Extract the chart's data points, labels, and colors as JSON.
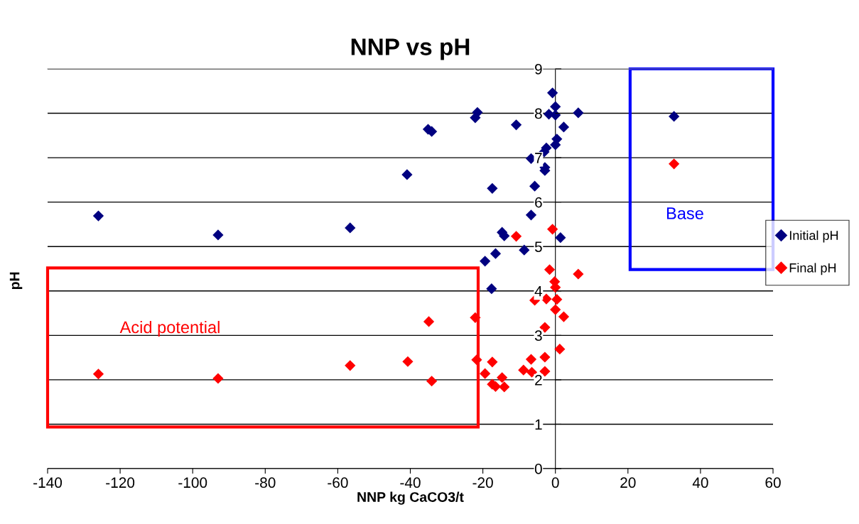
{
  "chart_data": {
    "type": "scatter",
    "title": "NNP vs pH",
    "xlabel": "NNP kg CaCO3/t",
    "ylabel": "pH",
    "series": [
      {
        "name": "Initial pH",
        "color": "#000080",
        "x": [
          -126,
          -93.0,
          -56.6,
          -40.9,
          -35.1,
          -34.1,
          -21.5,
          -22.1,
          -10.8,
          -17.4,
          -6.7,
          -5.7,
          -2.9,
          -2.9,
          -3.1,
          -2.5,
          -0.8,
          0,
          -1.8,
          0,
          6.3,
          2.3,
          0.4,
          0,
          -6.7,
          -14.7,
          -14.1,
          1.4,
          -8.6,
          -16.5,
          -19.4,
          -17.6,
          32.7
        ],
        "values": [
          5.69,
          5.26,
          5.42,
          6.62,
          7.64,
          7.59,
          8.02,
          7.9,
          7.74,
          6.31,
          6.98,
          6.36,
          6.78,
          6.71,
          7.13,
          7.22,
          8.46,
          8.15,
          7.98,
          7.96,
          8.01,
          7.69,
          7.42,
          7.29,
          5.71,
          5.32,
          5.24,
          5.2,
          4.92,
          4.84,
          4.67,
          4.05,
          7.93
        ]
      },
      {
        "name": "Final pH",
        "color": "#ff0000",
        "x": [
          -126,
          -93.0,
          -56.6,
          -40.7,
          -34.9,
          -34.1,
          -22.1,
          -21.7,
          -19.4,
          -17.4,
          -17.4,
          -16.5,
          -14.7,
          -14.1,
          -10.8,
          -0.8,
          -1.6,
          6.3,
          -0.2,
          0,
          -5.7,
          -2.5,
          0.4,
          0,
          2.3,
          -2.9,
          1.2,
          -6.7,
          -2.9,
          -8.8,
          -6.5,
          -2.9,
          32.7
        ],
        "values": [
          2.13,
          2.03,
          2.32,
          2.41,
          3.31,
          1.97,
          3.4,
          2.45,
          2.14,
          2.4,
          1.9,
          1.85,
          2.05,
          1.84,
          5.23,
          5.39,
          4.48,
          4.38,
          4.21,
          4.08,
          3.79,
          3.82,
          3.81,
          3.58,
          3.42,
          3.18,
          2.69,
          2.46,
          2.51,
          2.22,
          2.17,
          2.19,
          6.86
        ]
      }
    ],
    "xlim": [
      -140,
      60
    ],
    "xticks": [
      -140,
      -120,
      -100,
      -80,
      -60,
      -40,
      -20,
      0,
      20,
      40,
      60
    ],
    "ylim": [
      0,
      9
    ],
    "yticks": [
      0,
      1,
      2,
      3,
      4,
      5,
      6,
      7,
      8,
      9
    ],
    "grid": "y",
    "legend": "right",
    "marker": "diamond",
    "annotations": [
      "Acid potential",
      "Base"
    ]
  }
}
